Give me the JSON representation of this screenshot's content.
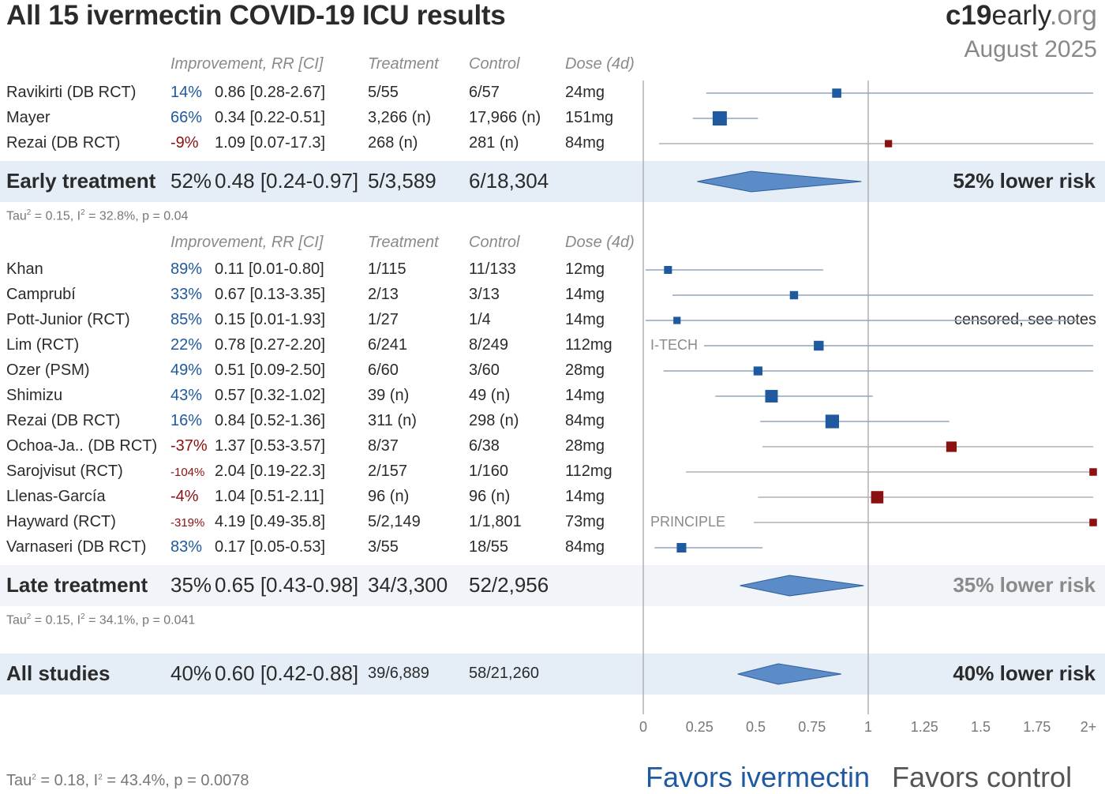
{
  "title": "All 15 ivermectin COVID-19 ICU results",
  "brand": {
    "bold": "c19",
    "rest": "early",
    "tld": ".org"
  },
  "date": "August 2025",
  "headers": {
    "improvement": "Improvement, RR [CI]",
    "treatment": "Treatment",
    "control": "Control",
    "dose": "Dose (4d)"
  },
  "early": {
    "studies": [
      {
        "name": "Ravikirti (DB RCT)",
        "improvement": "14%",
        "rr_text": "0.86 [0.28-2.67]",
        "treatment": "5/55",
        "control": "6/57",
        "dose": "24mg",
        "rr": 0.86,
        "lo": 0.28,
        "hi": 2.67,
        "weight": 0.35,
        "color": "#1f5aa0",
        "note": ""
      },
      {
        "name": "Mayer",
        "improvement": "66%",
        "rr_text": "0.34 [0.22-0.51]",
        "treatment": "3,266 (n)",
        "control": "17,966 (n)",
        "dose": "151mg",
        "rr": 0.34,
        "lo": 0.22,
        "hi": 0.51,
        "weight": 0.75,
        "color": "#1f5aa0",
        "note": ""
      },
      {
        "name": "Rezai (DB RCT)",
        "improvement": "-9%",
        "rr_text": "1.09 [0.07-17.3]",
        "treatment": "268 (n)",
        "control": "281 (n)",
        "dose": "84mg",
        "rr": 1.09,
        "lo": 0.07,
        "hi": 17.3,
        "weight": 0.2,
        "color": "#8b1010",
        "note": ""
      }
    ],
    "summary": {
      "label": "Early treatment",
      "improvement": "52%",
      "rr_text": "0.48 [0.24-0.97]",
      "treatment": "5/3,589",
      "control": "6/18,304",
      "rr": 0.48,
      "lo": 0.24,
      "hi": 0.97,
      "risk": "52% lower risk"
    },
    "tau": {
      "t2": "0.15",
      "i2": "32.8%",
      "p": "0.04"
    }
  },
  "late": {
    "studies": [
      {
        "name": "Khan",
        "improvement": "89%",
        "rr_text": "0.11 [0.01-0.80]",
        "treatment": "1/115",
        "control": "11/133",
        "dose": "12mg",
        "rr": 0.11,
        "lo": 0.01,
        "hi": 0.8,
        "weight": 0.25,
        "color": "#1f5aa0",
        "note": ""
      },
      {
        "name": "Camprubí",
        "improvement": "33%",
        "rr_text": "0.67 [0.13-3.35]",
        "treatment": "2/13",
        "control": "3/13",
        "dose": "14mg",
        "rr": 0.67,
        "lo": 0.13,
        "hi": 3.35,
        "weight": 0.28,
        "color": "#1f5aa0",
        "note": ""
      },
      {
        "name": "Pott-Junior (RCT)",
        "improvement": "85%",
        "rr_text": "0.15 [0.01-1.93]",
        "treatment": "1/27",
        "control": "1/4",
        "dose": "14mg",
        "rr": 0.15,
        "lo": 0.01,
        "hi": 1.93,
        "weight": 0.2,
        "color": "#1f5aa0",
        "note": "censored, see notes"
      },
      {
        "name": "Lim (RCT)",
        "improvement": "22%",
        "rr_text": "0.78 [0.27-2.20]",
        "treatment": "6/241",
        "control": "8/249",
        "dose": "112mg",
        "rr": 0.78,
        "lo": 0.27,
        "hi": 2.2,
        "weight": 0.4,
        "color": "#1f5aa0",
        "note": "I-TECH"
      },
      {
        "name": "Ozer (PSM)",
        "improvement": "49%",
        "rr_text": "0.51 [0.09-2.50]",
        "treatment": "6/60",
        "control": "3/60",
        "dose": "28mg",
        "rr": 0.51,
        "lo": 0.09,
        "hi": 2.5,
        "weight": 0.33,
        "color": "#1f5aa0",
        "note": ""
      },
      {
        "name": "Shimizu",
        "improvement": "43%",
        "rr_text": "0.57 [0.32-1.02]",
        "treatment": "39 (n)",
        "control": "49 (n)",
        "dose": "14mg",
        "rr": 0.57,
        "lo": 0.32,
        "hi": 1.02,
        "weight": 0.62,
        "color": "#1f5aa0",
        "note": ""
      },
      {
        "name": "Rezai (DB RCT)",
        "improvement": "16%",
        "rr_text": "0.84 [0.52-1.36]",
        "treatment": "311 (n)",
        "control": "298 (n)",
        "dose": "84mg",
        "rr": 0.84,
        "lo": 0.52,
        "hi": 1.36,
        "weight": 0.7,
        "color": "#1f5aa0",
        "note": ""
      },
      {
        "name": "Ochoa-Ja.. (DB RCT)",
        "improvement": "-37%",
        "rr_text": "1.37 [0.53-3.57]",
        "treatment": "8/37",
        "control": "6/38",
        "dose": "28mg",
        "rr": 1.37,
        "lo": 0.53,
        "hi": 3.57,
        "weight": 0.45,
        "color": "#8b1010",
        "note": ""
      },
      {
        "name": "Sarojvisut (RCT)",
        "improvement": "-104%",
        "rr_text": "2.04 [0.19-22.3]",
        "treatment": "2/157",
        "control": "1/160",
        "dose": "112mg",
        "rr": 2.04,
        "lo": 0.19,
        "hi": 22.3,
        "weight": 0.22,
        "color": "#8b1010",
        "note": ""
      },
      {
        "name": "Llenas-García",
        "improvement": "-4%",
        "rr_text": "1.04 [0.51-2.11]",
        "treatment": "96 (n)",
        "control": "96 (n)",
        "dose": "14mg",
        "rr": 1.04,
        "lo": 0.51,
        "hi": 2.11,
        "weight": 0.6,
        "color": "#8b1010",
        "note": ""
      },
      {
        "name": "Hayward (RCT)",
        "improvement": "-319%",
        "rr_text": "4.19 [0.49-35.8]",
        "treatment": "5/2,149",
        "control": "1/1,801",
        "dose": "73mg",
        "rr": 4.19,
        "lo": 0.49,
        "hi": 35.8,
        "weight": 0.22,
        "color": "#8b1010",
        "note": "PRINCIPLE"
      },
      {
        "name": "Varnaseri (DB RCT)",
        "improvement": "83%",
        "rr_text": "0.17 [0.05-0.53]",
        "treatment": "3/55",
        "control": "18/55",
        "dose": "84mg",
        "rr": 0.17,
        "lo": 0.05,
        "hi": 0.53,
        "weight": 0.38,
        "color": "#1f5aa0",
        "note": ""
      }
    ],
    "summary": {
      "label": "Late treatment",
      "improvement": "35%",
      "rr_text": "0.65 [0.43-0.98]",
      "treatment": "34/3,300",
      "control": "52/2,956",
      "rr": 0.65,
      "lo": 0.43,
      "hi": 0.98,
      "risk": "35% lower risk"
    },
    "tau": {
      "t2": "0.15",
      "i2": "34.1%",
      "p": "0.041"
    }
  },
  "all": {
    "summary": {
      "label": "All studies",
      "improvement": "40%",
      "rr_text": "0.60 [0.42-0.88]",
      "treatment": "39/6,889",
      "control": "58/21,260",
      "rr": 0.6,
      "lo": 0.42,
      "hi": 0.88,
      "risk": "40% lower risk"
    },
    "tau": {
      "t2": "0.18",
      "i2": "43.4%",
      "p": "0.0078"
    }
  },
  "axis": {
    "ticks": [
      "0",
      "0.25",
      "0.5",
      "0.75",
      "1",
      "1.25",
      "1.5",
      "1.75",
      "2+"
    ],
    "favors_left": "Favors ivermectin",
    "favors_right": "Favors control"
  },
  "colors": {
    "positive": "#1f5aa0",
    "negative": "#8b1010",
    "diamond": "#5b8cc8",
    "band": "#e5edf6"
  },
  "chart_data": {
    "type": "scatter",
    "title": "All 15 ivermectin COVID-19 ICU results",
    "xlabel": "",
    "ylabel": "",
    "xlim": [
      0,
      2
    ],
    "x_ticks": [
      "0",
      "0.25",
      "0.5",
      "0.75",
      "1",
      "1.25",
      "1.5",
      "1.75",
      "2+"
    ],
    "grid": false
  }
}
